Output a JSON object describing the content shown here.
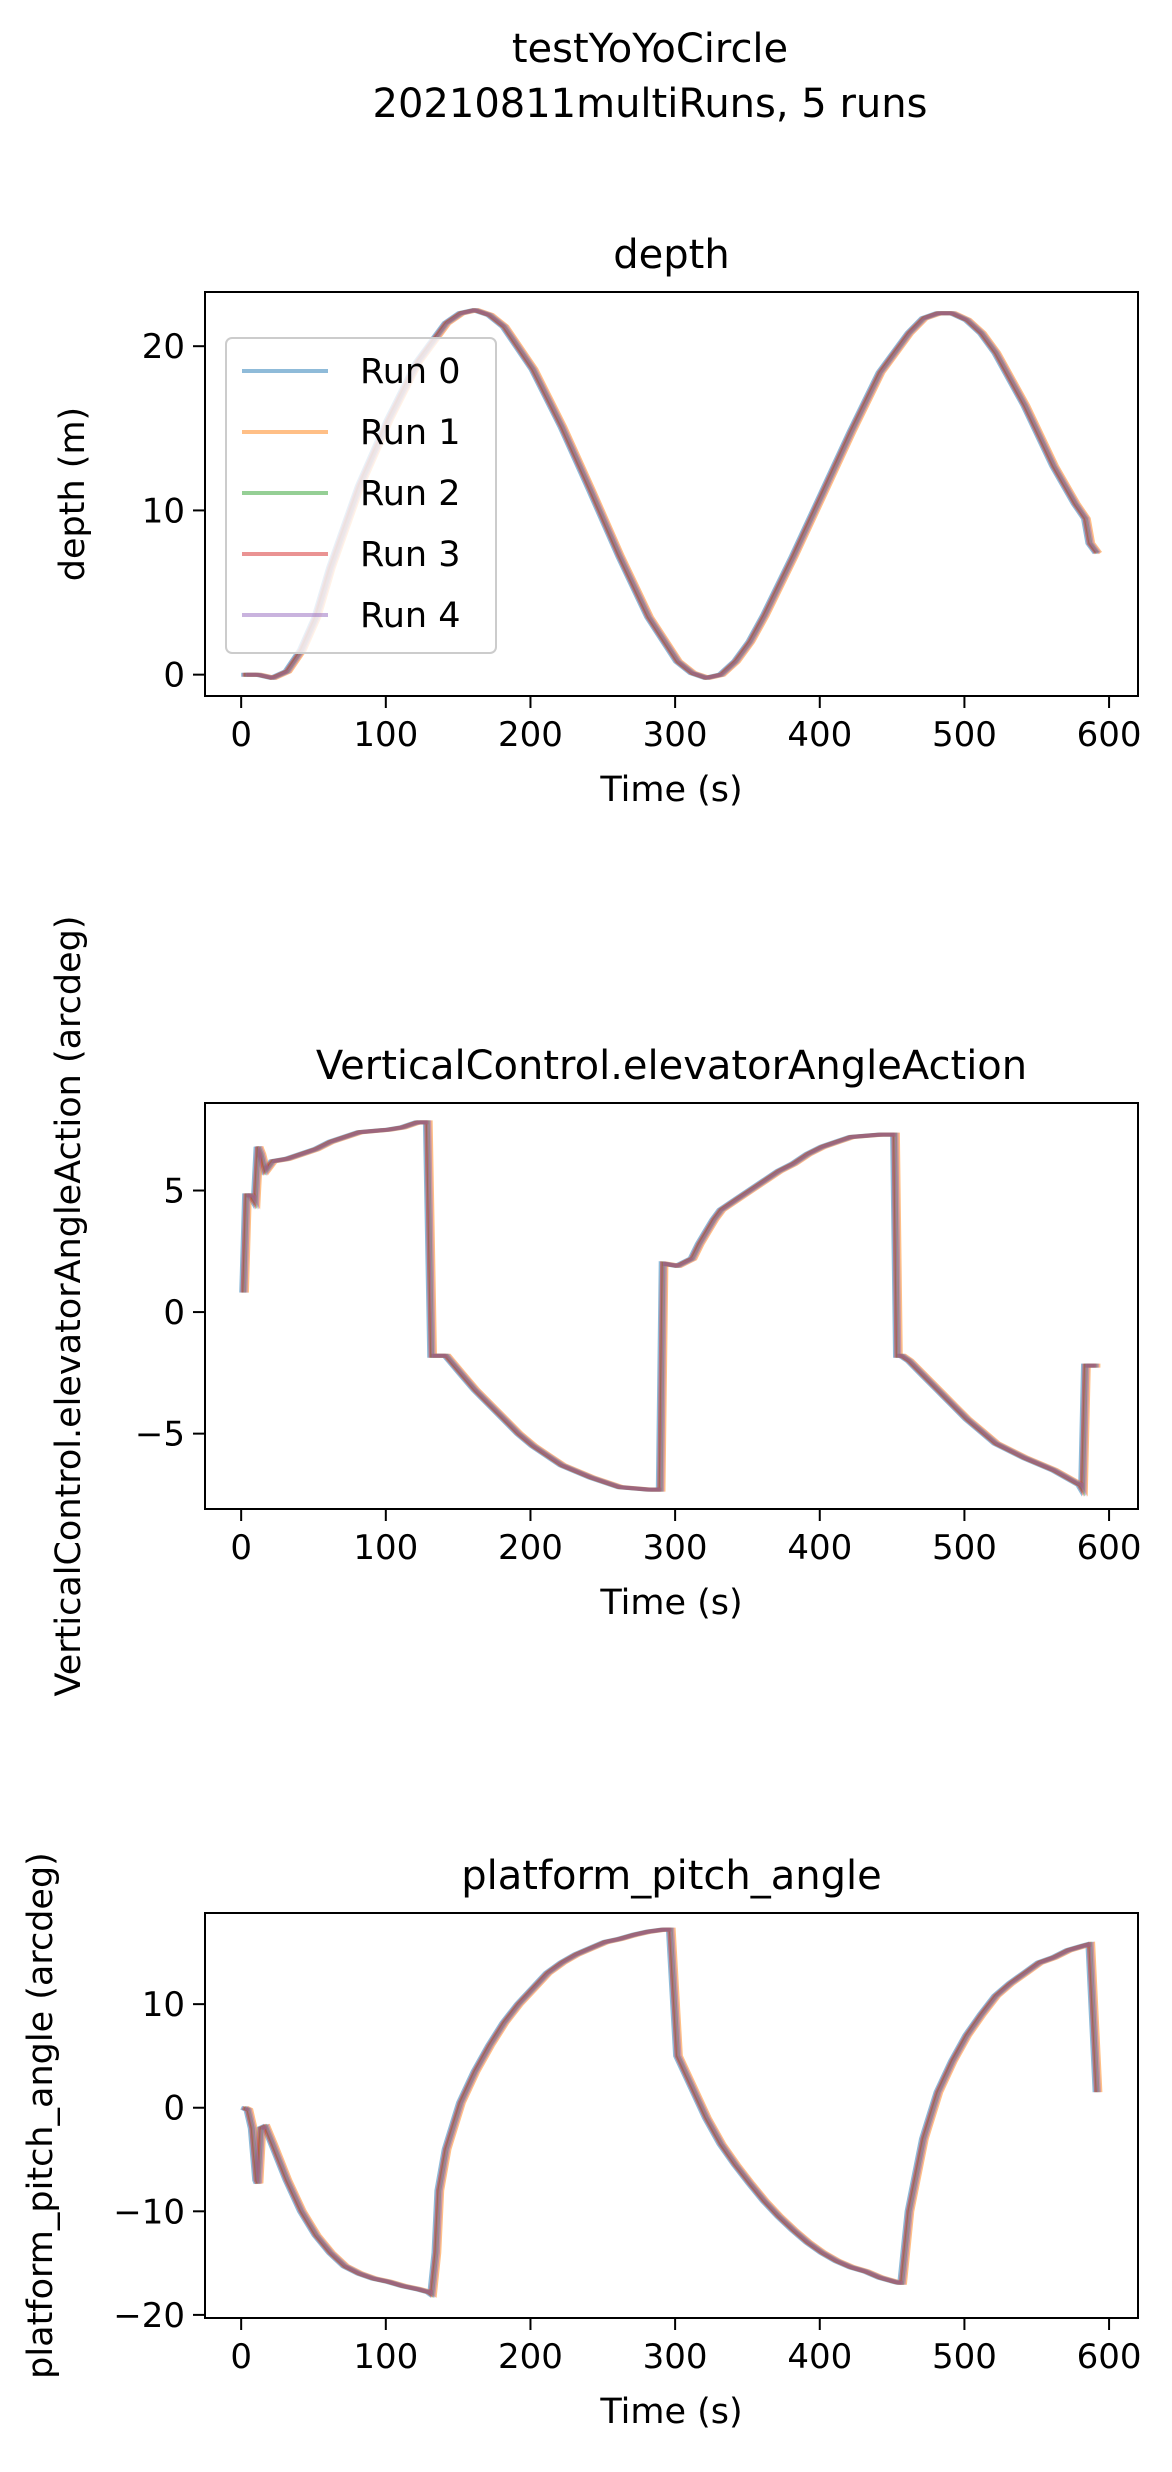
{
  "figure": {
    "title_line1": "testYoYoCircle",
    "title_line2": "20210811multiRuns, 5 runs"
  },
  "legend": [
    "Run 0",
    "Run 1",
    "Run 2",
    "Run 3",
    "Run 4"
  ],
  "colors": [
    "#1f77b4",
    "#ff7f0e",
    "#2ca02c",
    "#d62728",
    "#9467bd"
  ],
  "chart_data": [
    {
      "type": "line",
      "title": "depth",
      "xlabel": "Time (s)",
      "ylabel": "depth (m)",
      "xlim": [
        -25,
        620
      ],
      "ylim": [
        -1.3,
        23.3
      ],
      "xticks": [
        0,
        100,
        200,
        300,
        400,
        500,
        600
      ],
      "yticks": [
        0,
        10,
        20
      ],
      "legend_position": "upper-left",
      "series_offsets_s": [
        0,
        4,
        2,
        1,
        3
      ],
      "x": [
        0,
        10,
        20,
        30,
        40,
        50,
        60,
        80,
        100,
        120,
        140,
        150,
        160,
        170,
        180,
        200,
        220,
        240,
        260,
        280,
        300,
        310,
        320,
        330,
        340,
        350,
        360,
        380,
        400,
        420,
        440,
        460,
        470,
        480,
        490,
        500,
        510,
        520,
        540,
        560,
        575,
        582,
        585,
        590
      ],
      "y": [
        0,
        0,
        -0.2,
        0.2,
        1.5,
        3.5,
        6.5,
        11.5,
        15.5,
        19,
        21.4,
        22,
        22.2,
        21.9,
        21.2,
        18.6,
        15.1,
        11.2,
        7.2,
        3.5,
        0.8,
        0.1,
        -0.2,
        0,
        0.8,
        2,
        3.6,
        7.2,
        11,
        14.8,
        18.4,
        20.8,
        21.7,
        22,
        22,
        21.6,
        20.8,
        19.6,
        16.4,
        12.7,
        10.4,
        9.5,
        8,
        7.4
      ]
    },
    {
      "type": "line",
      "title": "VerticalControl.elevatorAngleAction",
      "xlabel": "Time (s)",
      "ylabel": "VerticalControl.elevatorAngleAction (arcdeg)",
      "xlim": [
        -25,
        620
      ],
      "ylim": [
        -8.1,
        8.6
      ],
      "xticks": [
        0,
        100,
        200,
        300,
        400,
        500,
        600
      ],
      "yticks": [
        -5,
        0,
        5
      ],
      "series_offsets_s": [
        0,
        4,
        2,
        1,
        3
      ],
      "x": [
        0,
        2,
        5,
        8,
        10,
        12,
        15,
        20,
        30,
        50,
        60,
        80,
        100,
        110,
        120,
        125,
        127,
        130,
        140,
        150,
        160,
        170,
        180,
        190,
        200,
        210,
        220,
        240,
        260,
        280,
        288,
        290,
        300,
        310,
        315,
        320,
        325,
        330,
        340,
        350,
        360,
        370,
        380,
        390,
        400,
        410,
        420,
        440,
        450,
        452,
        455,
        460,
        470,
        480,
        490,
        500,
        510,
        520,
        540,
        560,
        578,
        580,
        582,
        590
      ],
      "y": [
        0.8,
        4.8,
        4.8,
        4.5,
        6.8,
        6.5,
        5.8,
        6.2,
        6.3,
        6.7,
        7,
        7.4,
        7.5,
        7.6,
        7.8,
        7.8,
        7.8,
        -1.8,
        -1.8,
        -2.5,
        -3.2,
        -3.8,
        -4.4,
        -5,
        -5.5,
        -5.9,
        -6.3,
        -6.8,
        -7.2,
        -7.3,
        -7.3,
        2,
        1.9,
        2.2,
        2.8,
        3.3,
        3.8,
        4.2,
        4.6,
        5,
        5.4,
        5.8,
        6.1,
        6.5,
        6.8,
        7,
        7.2,
        7.3,
        7.3,
        -1.8,
        -1.8,
        -2,
        -2.6,
        -3.2,
        -3.8,
        -4.4,
        -4.9,
        -5.4,
        -6,
        -6.5,
        -7.1,
        -7.3,
        -2.2,
        -2.2
      ]
    },
    {
      "type": "line",
      "title": "platform_pitch_angle",
      "xlabel": "Time (s)",
      "ylabel": "platform_pitch_angle (arcdeg)",
      "xlim": [
        -25,
        620
      ],
      "ylim": [
        -20.3,
        18.8
      ],
      "xticks": [
        0,
        100,
        200,
        300,
        400,
        500,
        600
      ],
      "yticks": [
        -20,
        -10,
        0,
        10
      ],
      "series_offsets_s": [
        0,
        4,
        2,
        1,
        3
      ],
      "x": [
        0,
        3,
        6,
        9,
        10,
        12,
        15,
        20,
        30,
        40,
        50,
        60,
        70,
        80,
        90,
        100,
        110,
        120,
        128,
        130,
        133,
        135,
        140,
        150,
        160,
        170,
        180,
        190,
        200,
        210,
        220,
        230,
        240,
        250,
        260,
        270,
        280,
        290,
        295,
        300,
        310,
        320,
        330,
        340,
        350,
        360,
        370,
        380,
        390,
        400,
        410,
        420,
        430,
        440,
        450,
        453,
        455,
        460,
        470,
        480,
        490,
        500,
        510,
        520,
        530,
        540,
        550,
        560,
        570,
        580,
        585,
        590
      ],
      "y": [
        0,
        -0.2,
        -2,
        -7,
        -7.3,
        -2,
        -1.8,
        -3.5,
        -7,
        -10,
        -12.3,
        -14,
        -15.3,
        -16,
        -16.5,
        -16.8,
        -17.2,
        -17.5,
        -17.8,
        -18,
        -14,
        -8,
        -4,
        0.5,
        3.5,
        6,
        8.2,
        10,
        11.5,
        13,
        14,
        14.8,
        15.4,
        16,
        16.3,
        16.7,
        17,
        17.2,
        17.2,
        5,
        2,
        -1,
        -3.5,
        -5.5,
        -7.3,
        -9,
        -10.5,
        -11.8,
        -13,
        -14,
        -14.8,
        -15.4,
        -15.8,
        -16.4,
        -16.8,
        -16.9,
        -16.9,
        -10,
        -3,
        1.5,
        4.5,
        7,
        9,
        10.8,
        12,
        13,
        14,
        14.5,
        15.2,
        15.6,
        15.8,
        1.5
      ]
    }
  ]
}
